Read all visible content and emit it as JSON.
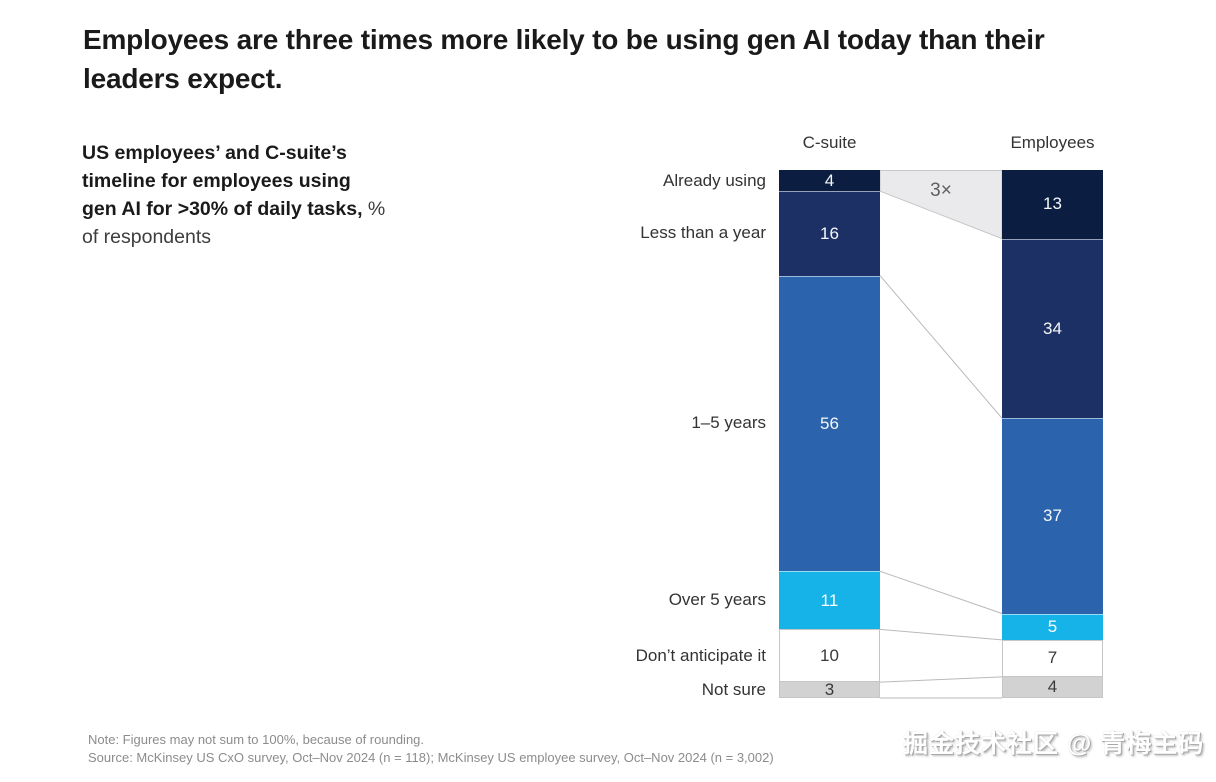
{
  "page": {
    "title_lines": [
      "Employees are three times more likely to be using gen AI today than their",
      "leaders expect."
    ],
    "subtitle_lines": [
      {
        "bold": "US employees’ and C-suite’s",
        "regular": ""
      },
      {
        "bold": "timeline for employees using",
        "regular": ""
      },
      {
        "bold": "gen AI for >30% of daily tasks,",
        "regular": " %"
      },
      {
        "bold": "",
        "regular": "of respondents"
      }
    ],
    "note": "Note: Figures may not sum to 100%, because of rounding.",
    "source": "Source: McKinsey US CxO survey, Oct–Nov 2024 (n = 118); McKinsey US employee survey, Oct–Nov 2024 (n = 3,002)",
    "watermark": "掘金技术社区 @ 青梅主码"
  },
  "chart_data": {
    "type": "bar",
    "subtype": "paired 100% stacked columns with flow connectors",
    "columns": [
      "C-suite",
      "Employees"
    ],
    "categories": [
      "Already using",
      "Less than a year",
      "1–5 years",
      "Over 5 years",
      "Don’t anticipate it",
      "Not sure"
    ],
    "series": [
      {
        "name": "C-suite",
        "values": [
          4,
          16,
          56,
          11,
          10,
          3
        ]
      },
      {
        "name": "Employees",
        "values": [
          13,
          34,
          37,
          5,
          7,
          4
        ]
      }
    ],
    "annotation": "3×",
    "ylim": [
      0,
      100
    ],
    "legend_position": "none",
    "grid": false,
    "colors": {
      "segments": [
        "#0b1e41",
        "#1c3065",
        "#2b64ad",
        "#16b3e9",
        "#ffffff",
        "#d2d2d2"
      ],
      "segment_text": [
        "#f5f7fa",
        "#f5f7fa",
        "#f5f7fa",
        "#ffffff",
        "#3a3a3a",
        "#3a3a3a"
      ],
      "white_segment_border": "#c6c6c6",
      "separator": "rgba(255,255,255,0.55)",
      "connector": "#b9b9b9",
      "band_fill": "#eaeaec",
      "band_border": "#c6c6c6",
      "annotation_text": "#5f5f5f"
    }
  }
}
